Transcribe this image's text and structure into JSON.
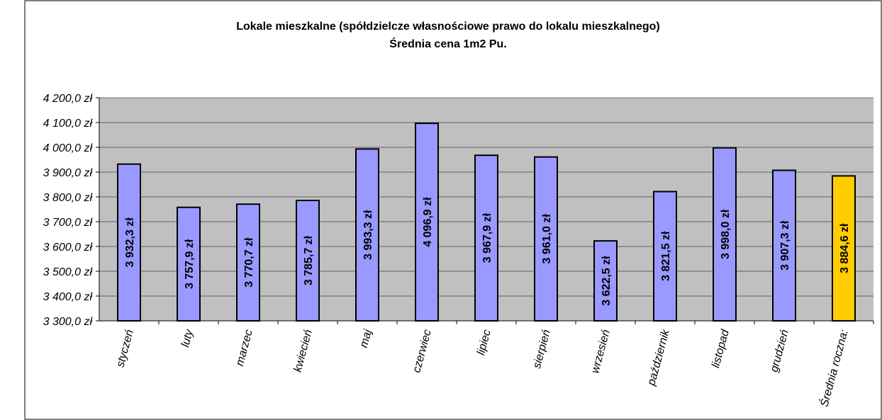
{
  "chart_data": {
    "type": "bar",
    "title": "Lokale mieszkalne (spółdzielcze własnościowe prawo do lokalu mieszkalnego)",
    "subtitle": "Średnia cena 1m2 Pu.",
    "categories": [
      "styczeń",
      "luty",
      "marzec",
      "kwiecień",
      "maj",
      "czerwiec",
      "lipiec",
      "sierpień",
      "wrzesień",
      "październik",
      "listopad",
      "grudzień",
      "Średnia roczna:"
    ],
    "values": [
      3932.3,
      3757.9,
      3770.7,
      3785.7,
      3993.3,
      4096.9,
      3967.9,
      3961.0,
      3622.5,
      3821.5,
      3998.0,
      3907.3,
      3884.6
    ],
    "value_labels": [
      "3 932,3 zł",
      "3 757,9 zł",
      "3 770,7 zł",
      "3 785,7 zł",
      "3 993,3 zł",
      "4 096,9 zł",
      "3 967,9 zł",
      "3 961,0 zł",
      "3 622,5 zł",
      "3 821,5 zł",
      "3 998,0 zł",
      "3 907,3 zł",
      "3 884,6 zł"
    ],
    "colors": [
      "#9999ff",
      "#9999ff",
      "#9999ff",
      "#9999ff",
      "#9999ff",
      "#9999ff",
      "#9999ff",
      "#9999ff",
      "#9999ff",
      "#9999ff",
      "#9999ff",
      "#9999ff",
      "#ffcc00"
    ],
    "ylim": [
      3300,
      4200
    ],
    "yticks": [
      {
        "value": 3300,
        "label": "3 300,0 zł"
      },
      {
        "value": 3400,
        "label": "3 400,0 zł"
      },
      {
        "value": 3500,
        "label": "3 500,0 zł"
      },
      {
        "value": 3600,
        "label": "3 600,0 zł"
      },
      {
        "value": 3700,
        "label": "3 700,0 zł"
      },
      {
        "value": 3800,
        "label": "3 800,0 zł"
      },
      {
        "value": 3900,
        "label": "3 900,0 zł"
      },
      {
        "value": 4000,
        "label": "4 000,0 zł"
      },
      {
        "value": 4100,
        "label": "4 100,0 zł"
      },
      {
        "value": 4200,
        "label": "4 200,0 zł"
      }
    ],
    "grid": true
  }
}
